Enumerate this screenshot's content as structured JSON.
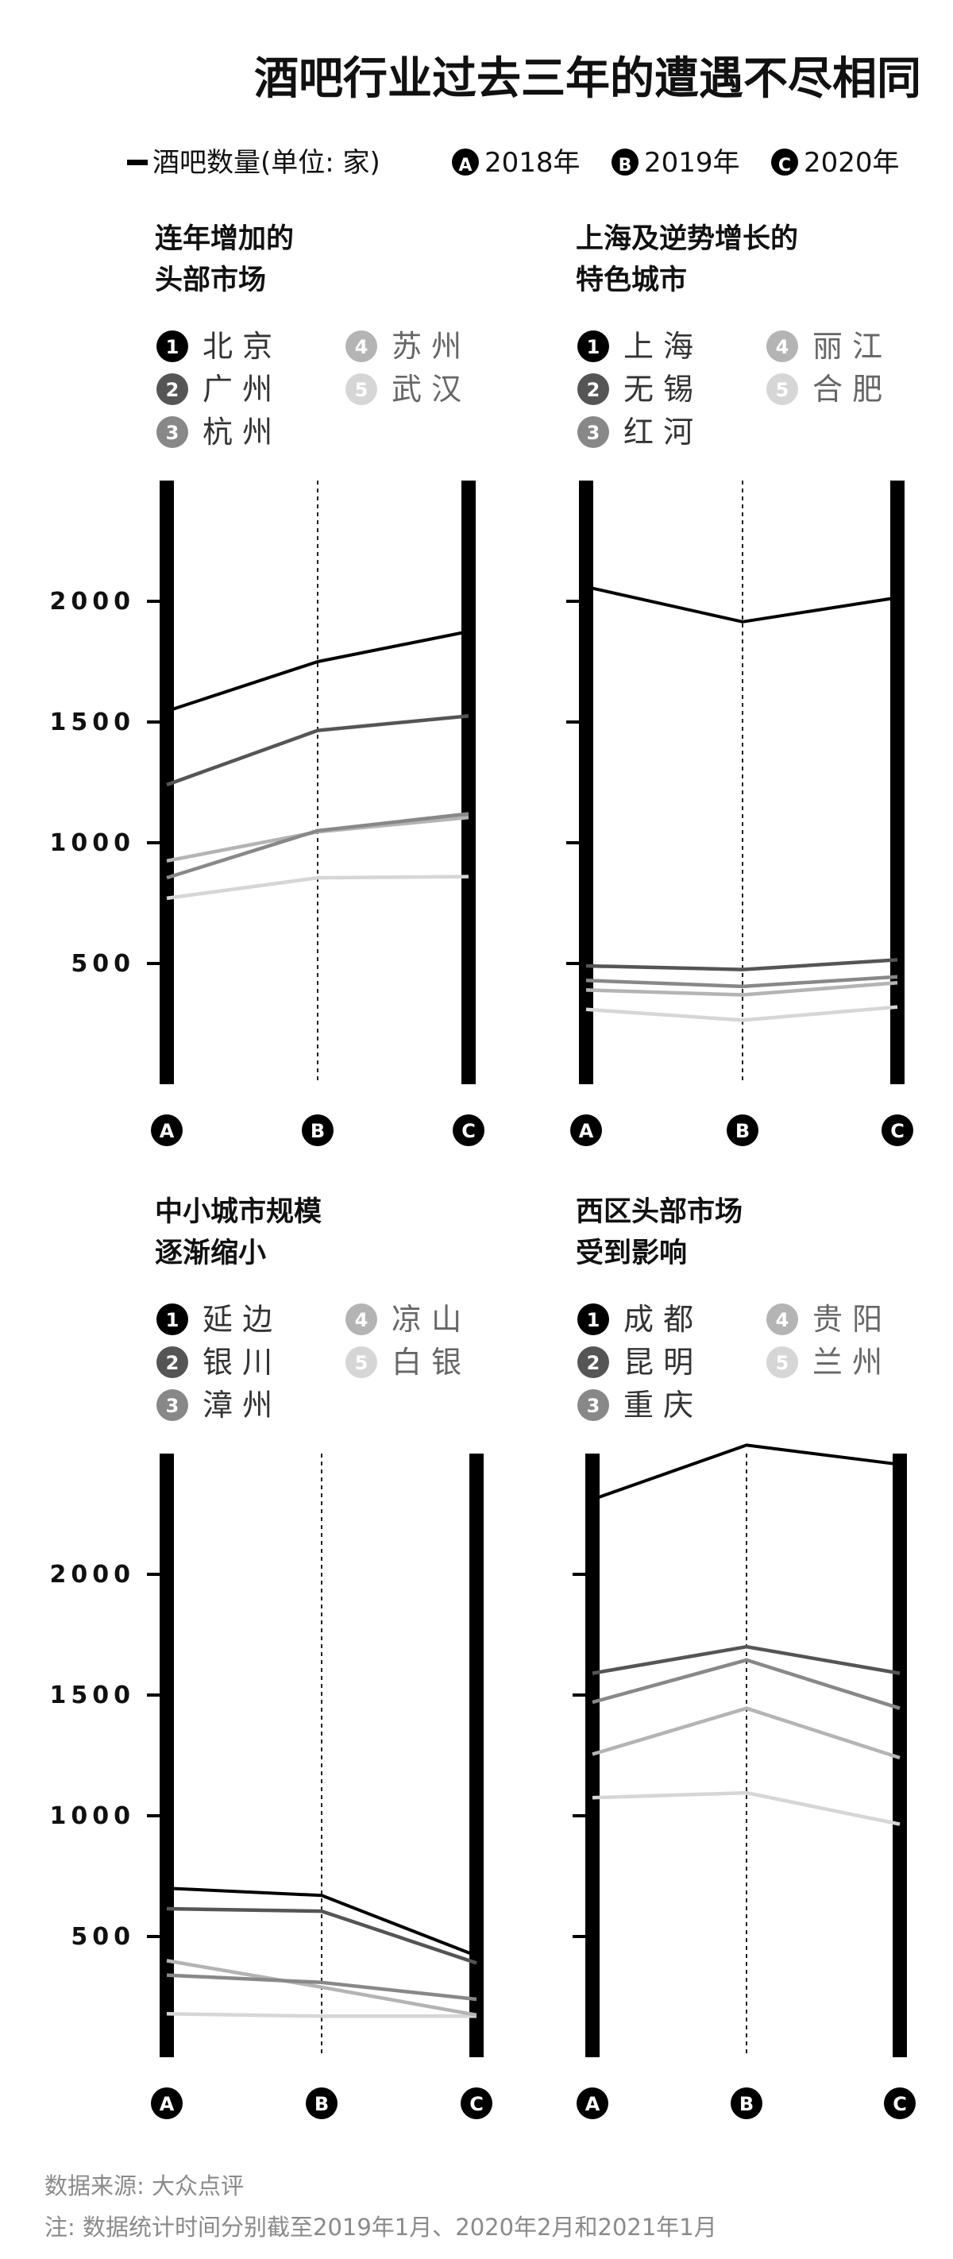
{
  "header": {
    "title": "酒吧行业过去三年的遭遇不尽相同",
    "legend_line": "酒吧数量(单位: 家)",
    "years": [
      {
        "marker": "A",
        "label": "2018年"
      },
      {
        "marker": "B",
        "label": "2019年"
      },
      {
        "marker": "C",
        "label": "2020年"
      }
    ]
  },
  "footer": {
    "source": "数据来源: 大众点评",
    "note": "注: 数据统计时间分别截至2019年1月、2020年2月和2021年1月"
  },
  "colors": [
    "#000000",
    "#555555",
    "#888888",
    "#b4b4b4",
    "#d6d6d6"
  ],
  "chart_data": [
    {
      "type": "line",
      "title": [
        "连年增加的",
        "头部市场"
      ],
      "x": [
        "A",
        "B",
        "C"
      ],
      "ylim": [
        0,
        2500
      ],
      "yticks": [
        500,
        1000,
        1500,
        2000
      ],
      "series": [
        {
          "marker": "1",
          "name": "北 京",
          "values": [
            1545,
            1750,
            1875
          ]
        },
        {
          "marker": "2",
          "name": "广 州",
          "values": [
            1240,
            1465,
            1525
          ]
        },
        {
          "marker": "3",
          "name": "杭 州",
          "values": [
            855,
            1050,
            1120
          ]
        },
        {
          "marker": "4",
          "name": "苏 州",
          "values": [
            925,
            1045,
            1105
          ]
        },
        {
          "marker": "5",
          "name": "武 汉",
          "values": [
            770,
            855,
            860
          ]
        }
      ]
    },
    {
      "type": "line",
      "title": [
        "上海及逆势增长的",
        "特色城市"
      ],
      "x": [
        "A",
        "B",
        "C"
      ],
      "ylim": [
        0,
        2500
      ],
      "yticks": [
        500,
        1000,
        1500,
        2000
      ],
      "series": [
        {
          "marker": "1",
          "name": "上 海",
          "values": [
            2060,
            1915,
            2015
          ]
        },
        {
          "marker": "2",
          "name": "无 锡",
          "values": [
            490,
            475,
            515
          ]
        },
        {
          "marker": "3",
          "name": "红 河",
          "values": [
            430,
            405,
            445
          ]
        },
        {
          "marker": "4",
          "name": "丽 江",
          "values": [
            390,
            370,
            420
          ]
        },
        {
          "marker": "5",
          "name": "合 肥",
          "values": [
            310,
            265,
            320
          ]
        }
      ]
    },
    {
      "type": "line",
      "title": [
        "中小城市规模",
        "逐渐缩小"
      ],
      "x": [
        "A",
        "B",
        "C"
      ],
      "ylim": [
        0,
        2500
      ],
      "yticks": [
        500,
        1000,
        1500,
        2000
      ],
      "series": [
        {
          "marker": "1",
          "name": "延 边",
          "values": [
            700,
            670,
            420
          ]
        },
        {
          "marker": "2",
          "name": "银 川",
          "values": [
            615,
            605,
            390
          ]
        },
        {
          "marker": "3",
          "name": "漳 州",
          "values": [
            340,
            310,
            240
          ]
        },
        {
          "marker": "4",
          "name": "凉 山",
          "values": [
            400,
            290,
            175
          ]
        },
        {
          "marker": "5",
          "name": "白 银",
          "values": [
            180,
            170,
            170
          ]
        }
      ]
    },
    {
      "type": "line",
      "title": [
        "西区头部市场",
        "受到影响"
      ],
      "x": [
        "A",
        "B",
        "C"
      ],
      "ylim": [
        0,
        2500
      ],
      "yticks": [
        500,
        1000,
        1500,
        2000
      ],
      "series": [
        {
          "marker": "1",
          "name": "成 都",
          "values": [
            2310,
            2535,
            2455
          ]
        },
        {
          "marker": "2",
          "name": "昆 明",
          "values": [
            1590,
            1700,
            1590
          ]
        },
        {
          "marker": "3",
          "name": "重 庆",
          "values": [
            1470,
            1645,
            1445
          ]
        },
        {
          "marker": "4",
          "name": "贵 阳",
          "values": [
            1255,
            1445,
            1240
          ]
        },
        {
          "marker": "5",
          "name": "兰 州",
          "values": [
            1075,
            1095,
            965
          ]
        }
      ]
    }
  ]
}
